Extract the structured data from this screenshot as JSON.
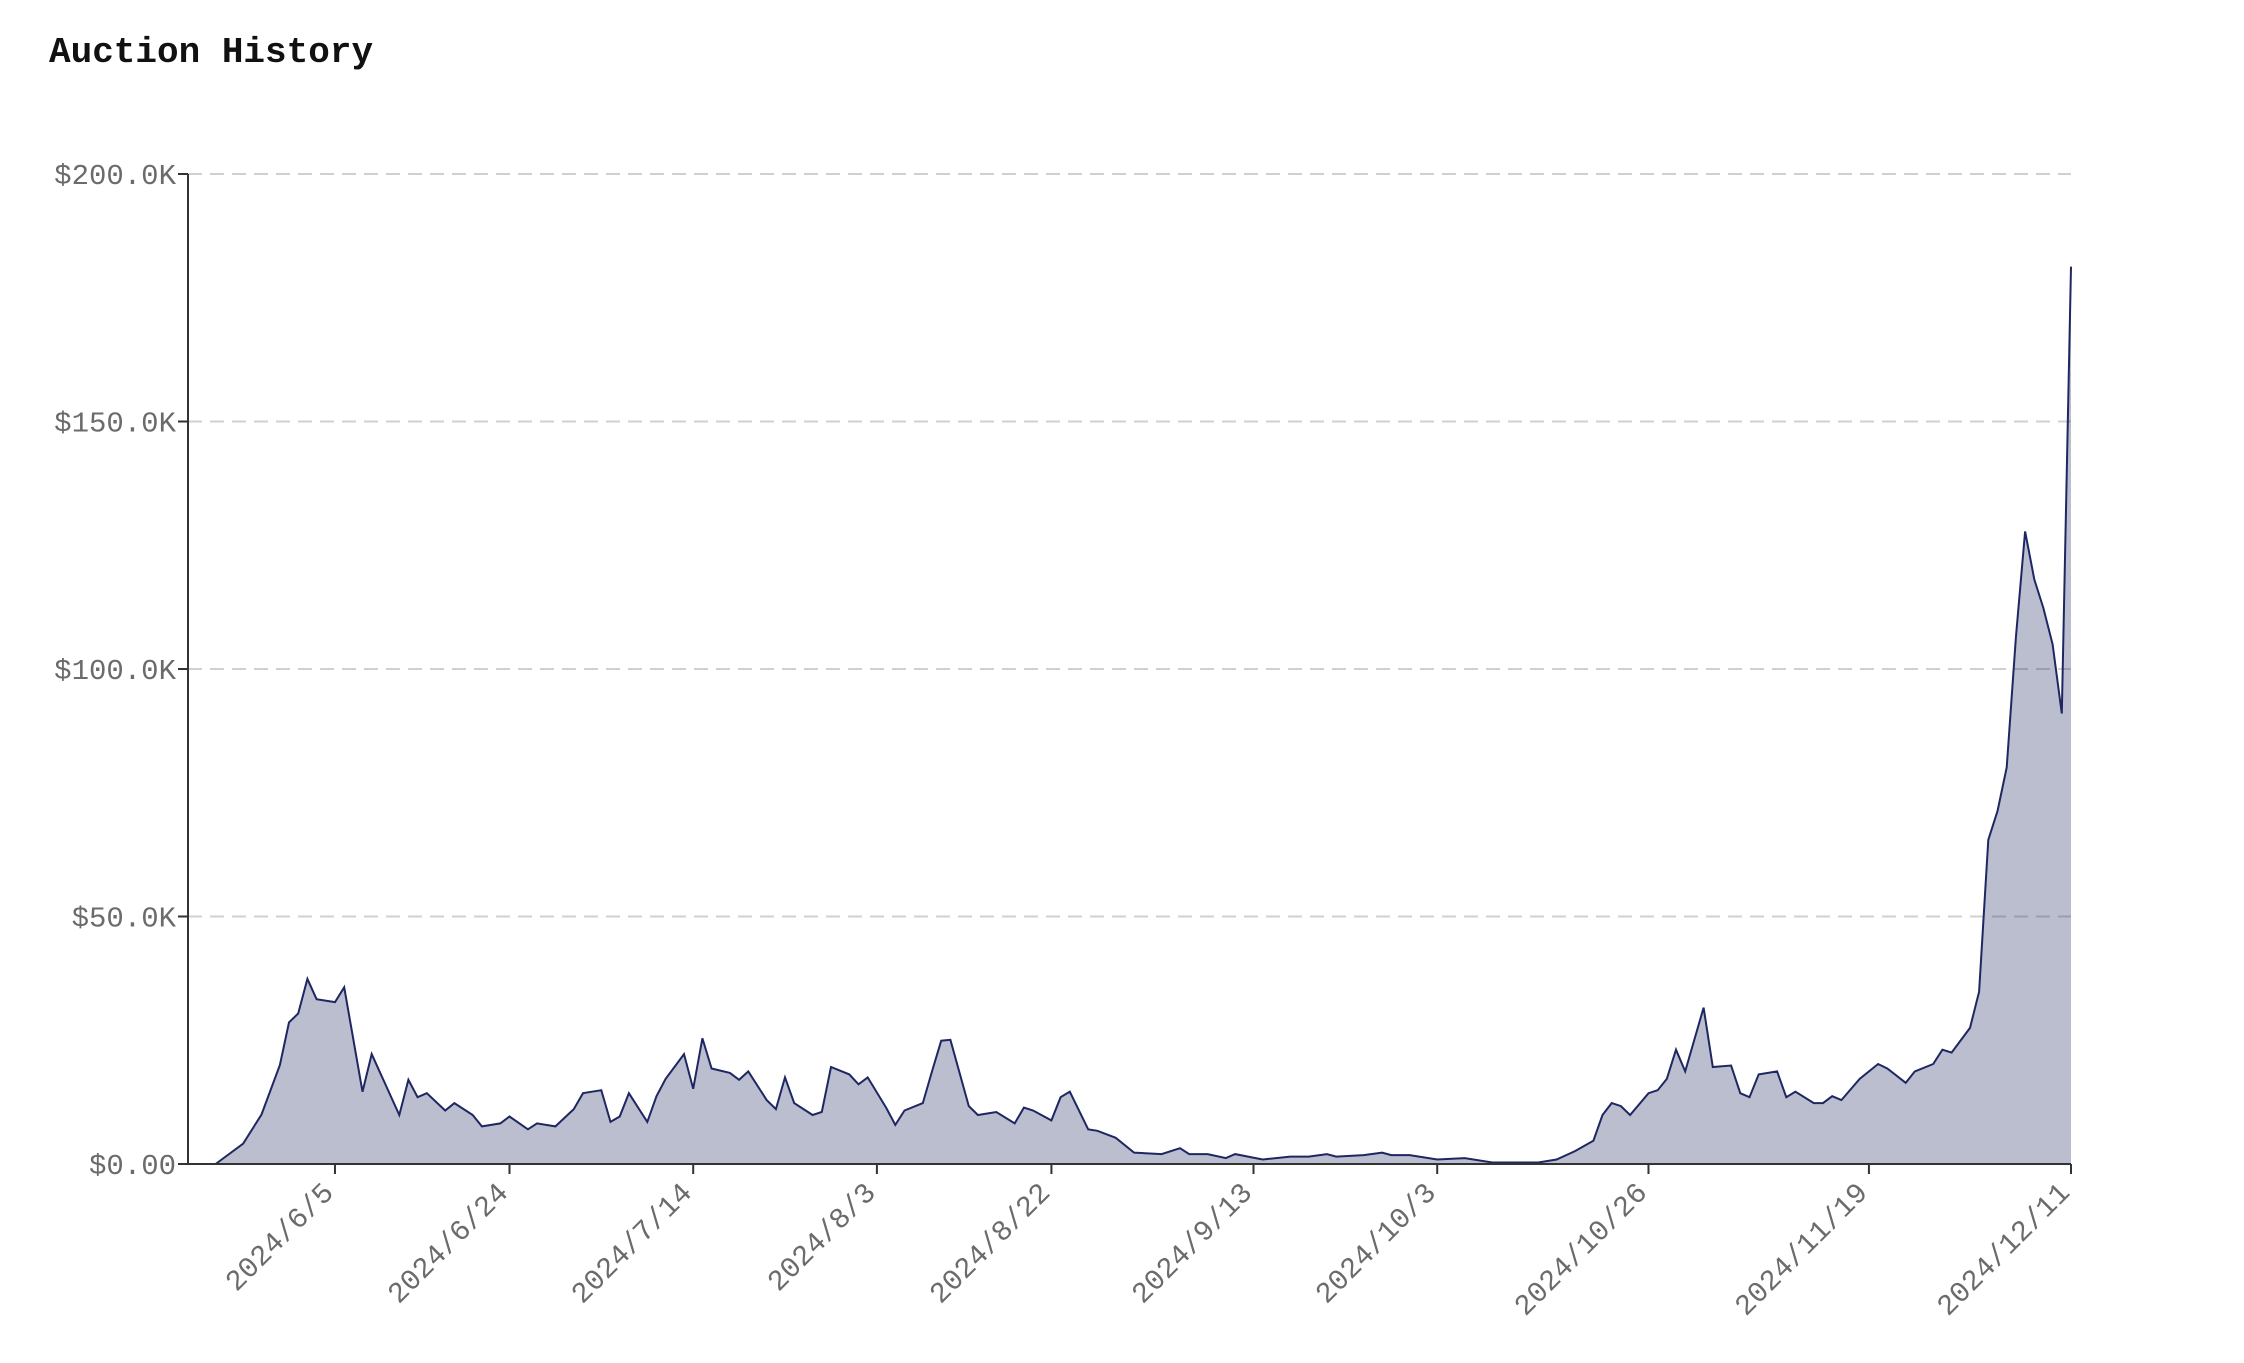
{
  "chart_data": {
    "type": "area",
    "title": "Auction History",
    "x": [
      "2024/5/23",
      "2024/5/26",
      "2024/5/28",
      "2024/5/30",
      "2024/5/31",
      "2024/6/1",
      "2024/6/2",
      "2024/6/3",
      "2024/6/5",
      "2024/6/6",
      "2024/6/8",
      "2024/6/9",
      "2024/6/10",
      "2024/6/12",
      "2024/6/13",
      "2024/6/14",
      "2024/6/15",
      "2024/6/17",
      "2024/6/18",
      "2024/6/20",
      "2024/6/21",
      "2024/6/23",
      "2024/6/24",
      "2024/6/26",
      "2024/6/27",
      "2024/6/29",
      "2024/7/1",
      "2024/7/2",
      "2024/7/4",
      "2024/7/5",
      "2024/7/6",
      "2024/7/7",
      "2024/7/9",
      "2024/7/10",
      "2024/7/11",
      "2024/7/13",
      "2024/7/14",
      "2024/7/15",
      "2024/7/16",
      "2024/7/18",
      "2024/7/19",
      "2024/7/20",
      "2024/7/22",
      "2024/7/23",
      "2024/7/24",
      "2024/7/25",
      "2024/7/27",
      "2024/7/28",
      "2024/7/29",
      "2024/7/31",
      "2024/8/1",
      "2024/8/2",
      "2024/8/4",
      "2024/8/5",
      "2024/8/6",
      "2024/8/8",
      "2024/8/9",
      "2024/8/10",
      "2024/8/11",
      "2024/8/13",
      "2024/8/14",
      "2024/8/16",
      "2024/8/18",
      "2024/8/19",
      "2024/8/20",
      "2024/8/22",
      "2024/8/23",
      "2024/8/24",
      "2024/8/26",
      "2024/8/27",
      "2024/8/29",
      "2024/8/31",
      "2024/9/3",
      "2024/9/5",
      "2024/9/6",
      "2024/9/8",
      "2024/9/10",
      "2024/9/11",
      "2024/9/14",
      "2024/9/17",
      "2024/9/19",
      "2024/9/21",
      "2024/9/22",
      "2024/9/25",
      "2024/9/27",
      "2024/9/28",
      "2024/9/30",
      "2024/10/3",
      "2024/10/6",
      "2024/10/9",
      "2024/10/14",
      "2024/10/16",
      "2024/10/18",
      "2024/10/20",
      "2024/10/21",
      "2024/10/22",
      "2024/10/23",
      "2024/10/24",
      "2024/10/26",
      "2024/10/27",
      "2024/10/28",
      "2024/10/29",
      "2024/10/30",
      "2024/11/1",
      "2024/11/2",
      "2024/11/4",
      "2024/11/5",
      "2024/11/6",
      "2024/11/7",
      "2024/11/9",
      "2024/11/10",
      "2024/11/11",
      "2024/11/13",
      "2024/11/14",
      "2024/11/15",
      "2024/11/16",
      "2024/11/18",
      "2024/11/20",
      "2024/11/21",
      "2024/11/23",
      "2024/11/24",
      "2024/11/26",
      "2024/11/27",
      "2024/11/28",
      "2024/11/30",
      "2024/12/1",
      "2024/12/2",
      "2024/12/3",
      "2024/12/4",
      "2024/12/5",
      "2024/12/6",
      "2024/12/7",
      "2024/12/8",
      "2024/12/9",
      "2024/12/10",
      "2024/12/11"
    ],
    "values": [
      0,
      4100,
      10000,
      20000,
      28600,
      30400,
      37400,
      33300,
      32700,
      35700,
      14600,
      22200,
      18100,
      9900,
      17000,
      13500,
      14300,
      10800,
      12300,
      9900,
      7600,
      8200,
      9600,
      7000,
      8200,
      7600,
      11100,
      14300,
      14900,
      8500,
      9600,
      14300,
      8500,
      13700,
      17200,
      22200,
      15200,
      25400,
      19300,
      18400,
      17000,
      18700,
      12900,
      11100,
      17500,
      12300,
      9900,
      10500,
      19600,
      18100,
      16100,
      17500,
      11400,
      7900,
      10800,
      12300,
      18700,
      24900,
      25100,
      11700,
      9900,
      10500,
      8200,
      11400,
      10800,
      8800,
      13500,
      14600,
      7000,
      6700,
      5300,
      2300,
      2000,
      3200,
      2000,
      2000,
      1200,
      2000,
      900,
      1500,
      1500,
      2000,
      1500,
      1800,
      2300,
      1800,
      1800,
      900,
      1200,
      300,
      300,
      900,
      2600,
      4700,
      9900,
      12300,
      11700,
      9900,
      14300,
      14900,
      17200,
      23100,
      18700,
      31600,
      19600,
      19900,
      14300,
      13500,
      18100,
      18700,
      13500,
      14600,
      12300,
      12300,
      13700,
      12900,
      17200,
      20200,
      19300,
      16400,
      18700,
      20200,
      23100,
      22500,
      27500,
      34800,
      65500,
      71300,
      80100,
      106400,
      127800,
      118100,
      112300,
      105000,
      91000,
      181300
    ],
    "color": "#1e2761",
    "xlim": [
      "2024/5/20",
      "2024/12/11"
    ],
    "xticks": [
      "2024/6/5",
      "2024/6/24",
      "2024/7/14",
      "2024/8/3",
      "2024/8/22",
      "2024/9/13",
      "2024/10/3",
      "2024/10/26",
      "2024/11/19",
      "2024/12/11"
    ],
    "ylim": [
      0,
      200000
    ],
    "yticks": [
      {
        "value": 0,
        "label": "$0.00"
      },
      {
        "value": 50000,
        "label": "$50.0K"
      },
      {
        "value": 100000,
        "label": "$100.0K"
      },
      {
        "value": 150000,
        "label": "$150.0K"
      },
      {
        "value": 200000,
        "label": "$200.0K"
      }
    ],
    "grid": true
  }
}
